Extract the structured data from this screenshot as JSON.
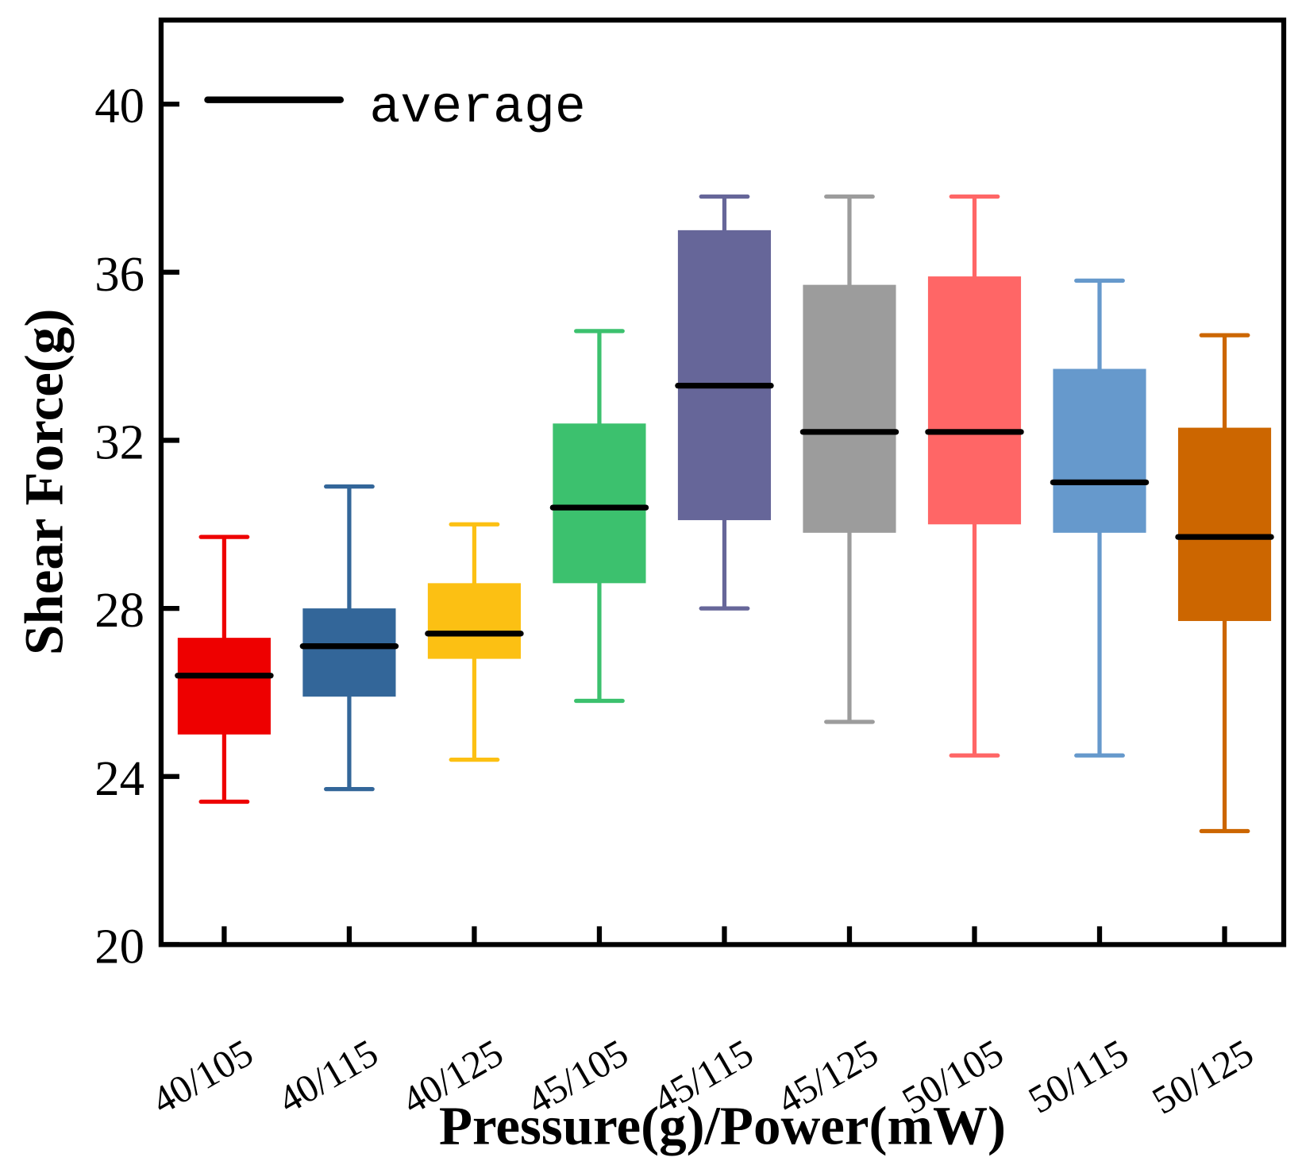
{
  "chart_data": {
    "type": "box",
    "xlabel": "Pressure(g)/Power(mW)",
    "ylabel": "Shear Force(g)",
    "ylim": [
      20,
      42
    ],
    "yticks": [
      20,
      24,
      28,
      32,
      36,
      40
    ],
    "grid": false,
    "legend": {
      "position": "top-left",
      "entries": [
        "average"
      ]
    },
    "categories": [
      "40/105",
      "40/115",
      "40/125",
      "45/105",
      "45/115",
      "45/125",
      "50/105",
      "50/115",
      "50/125"
    ],
    "boxes": [
      {
        "name": "40/105",
        "whisker_high": 29.7,
        "q3": 27.3,
        "mean": 26.4,
        "q1": 25.0,
        "whisker_low": 23.4,
        "color": "#ee0000"
      },
      {
        "name": "40/115",
        "whisker_high": 30.9,
        "q3": 28.0,
        "mean": 27.1,
        "q1": 25.9,
        "whisker_low": 23.7,
        "color": "#336699"
      },
      {
        "name": "40/125",
        "whisker_high": 30.0,
        "q3": 28.6,
        "mean": 27.4,
        "q1": 26.8,
        "whisker_low": 24.4,
        "color": "#fcc013"
      },
      {
        "name": "45/105",
        "whisker_high": 34.6,
        "q3": 32.4,
        "mean": 30.4,
        "q1": 28.6,
        "whisker_low": 25.8,
        "color": "#3cc16e"
      },
      {
        "name": "45/115",
        "whisker_high": 37.8,
        "q3": 37.0,
        "mean": 33.3,
        "q1": 30.1,
        "whisker_low": 28.0,
        "color": "#666699"
      },
      {
        "name": "45/125",
        "whisker_high": 37.8,
        "q3": 35.7,
        "mean": 32.2,
        "q1": 29.8,
        "whisker_low": 25.3,
        "color": "#9c9c9c"
      },
      {
        "name": "50/105",
        "whisker_high": 37.8,
        "q3": 35.9,
        "mean": 32.2,
        "q1": 30.0,
        "whisker_low": 24.5,
        "color": "#ff6666"
      },
      {
        "name": "50/115",
        "whisker_high": 35.8,
        "q3": 33.7,
        "mean": 31.0,
        "q1": 29.8,
        "whisker_low": 24.5,
        "color": "#6699cc"
      },
      {
        "name": "50/125",
        "whisker_high": 34.5,
        "q3": 32.3,
        "mean": 29.7,
        "q1": 27.7,
        "whisker_low": 22.7,
        "color": "#cc6600"
      }
    ]
  }
}
